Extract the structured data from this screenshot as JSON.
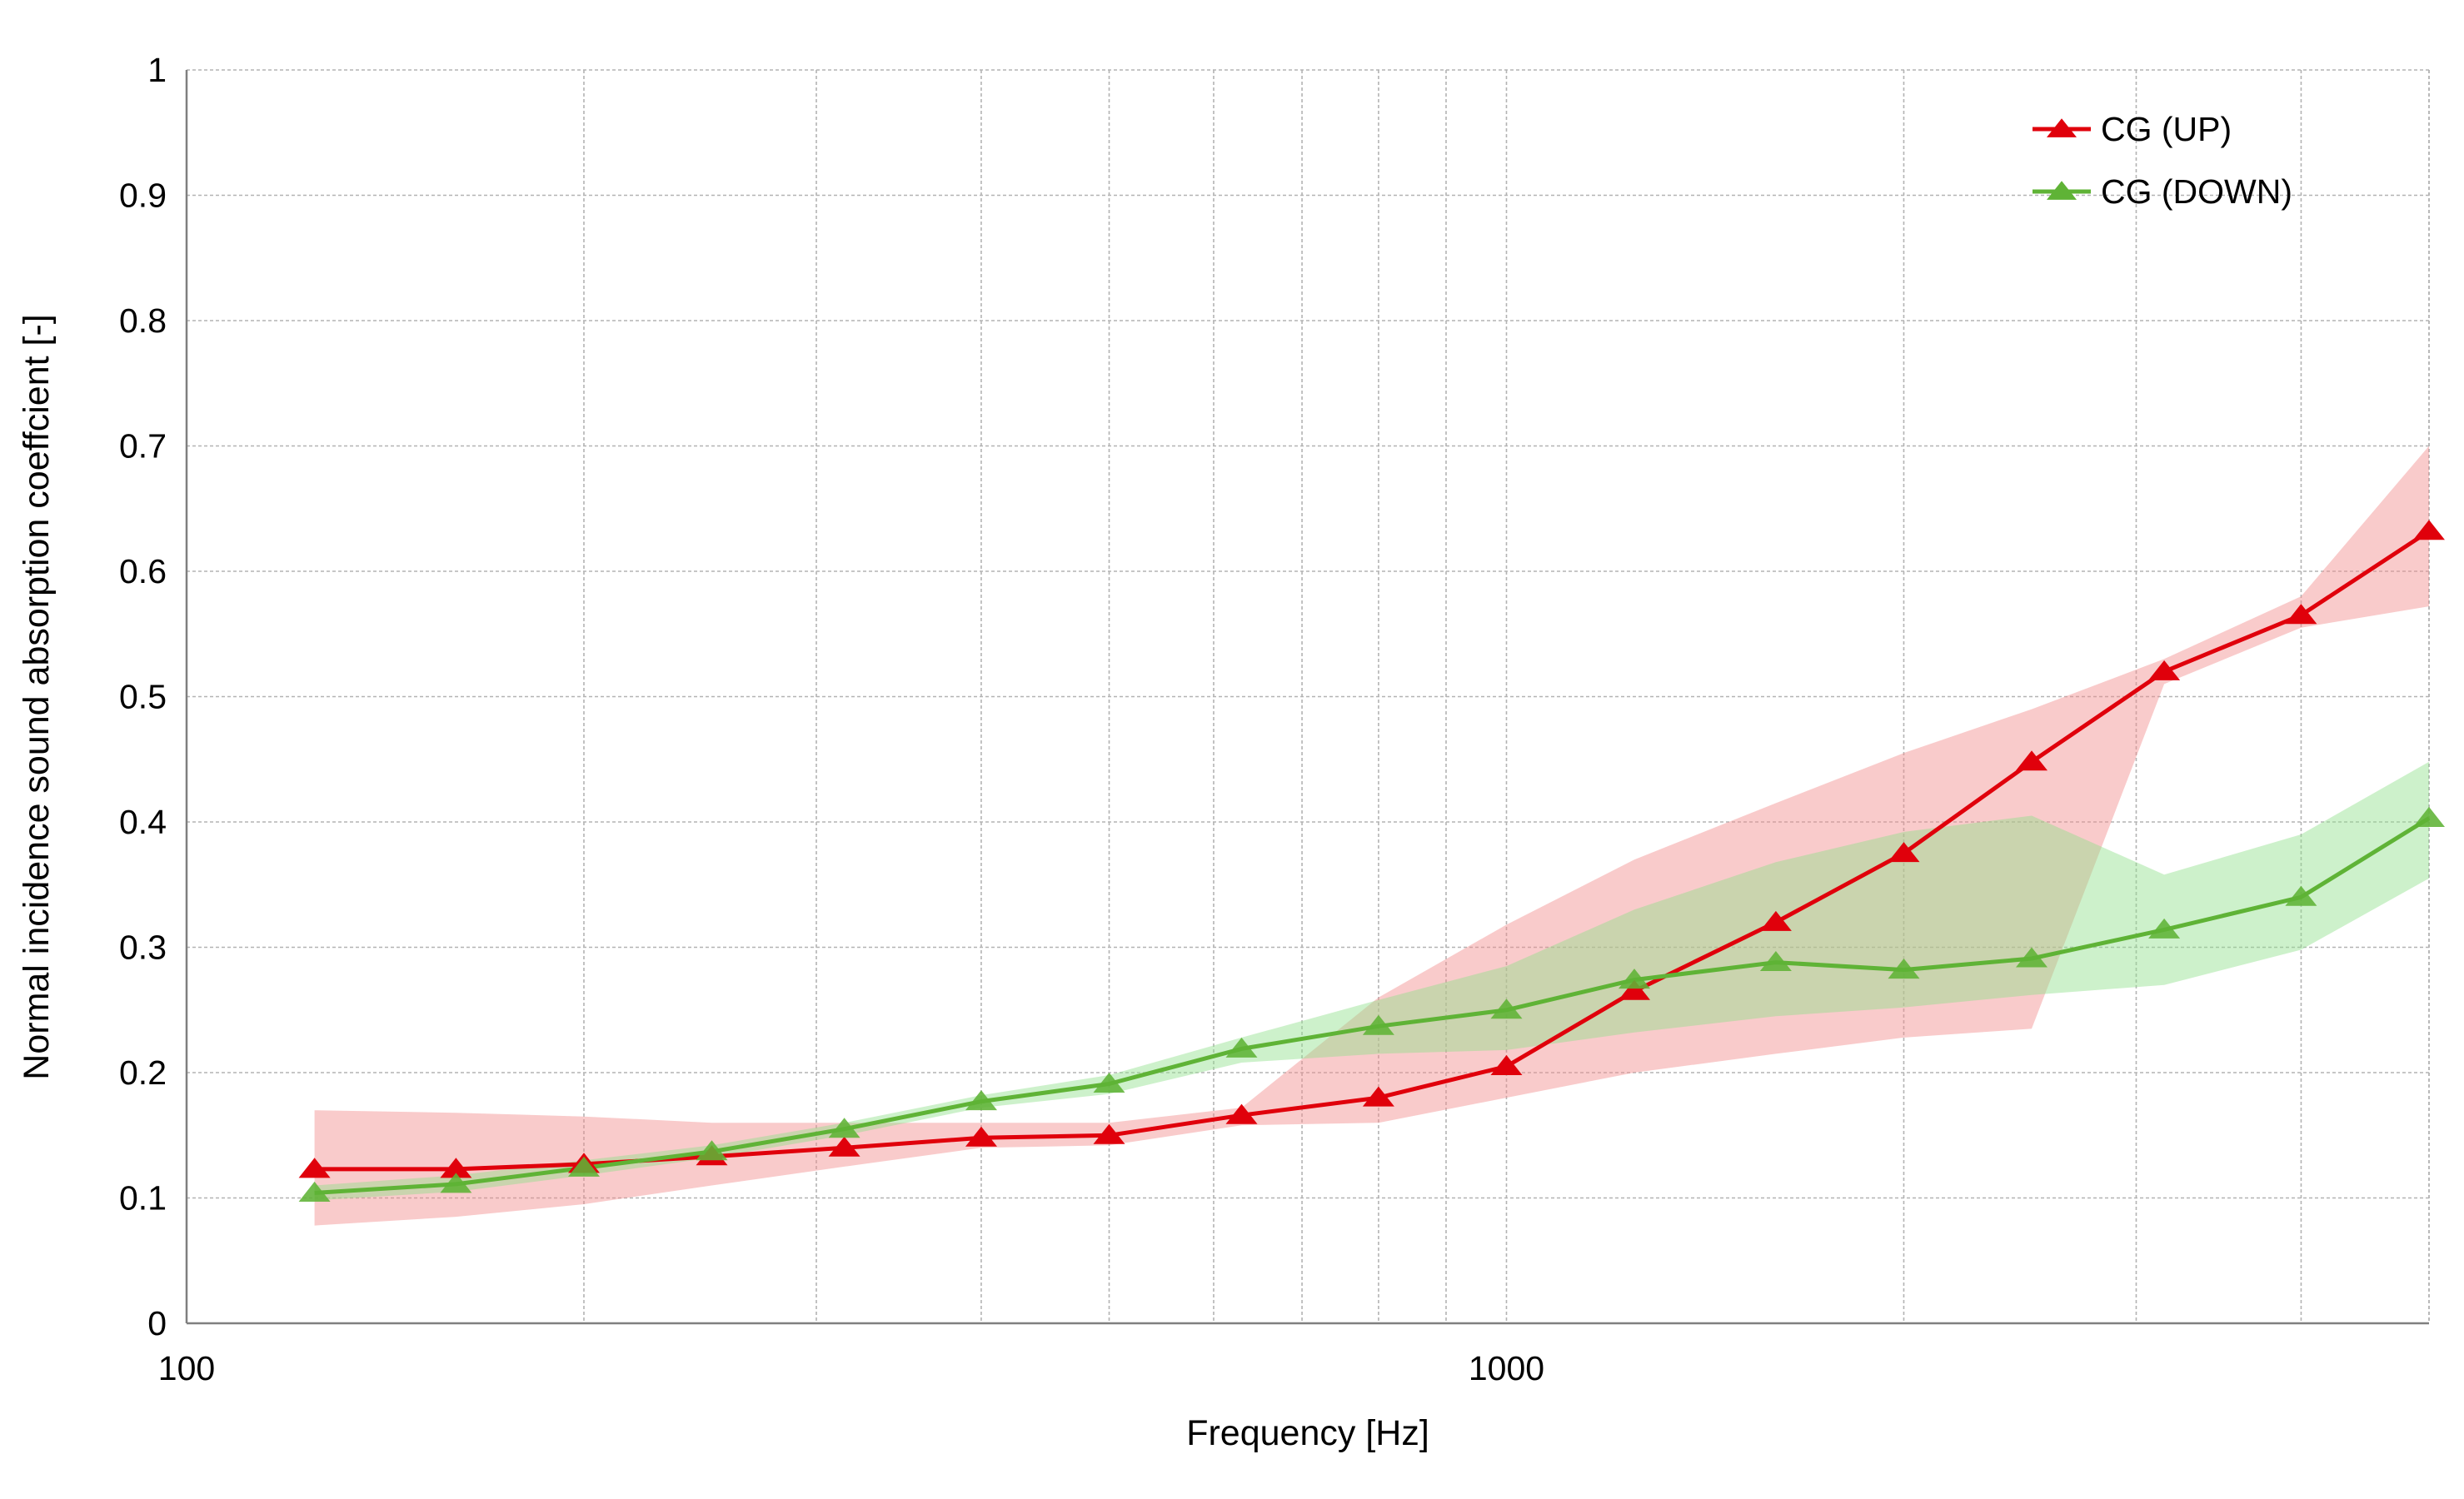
{
  "chart_data": {
    "type": "line",
    "xlabel": "Frequency [Hz]",
    "ylabel": "Normal incidence sound absorption coeffcient [-]",
    "x_scale": "log",
    "xlim": [
      100,
      5000
    ],
    "ylim": [
      0,
      1
    ],
    "x_tick_labels": [
      "100",
      "1000"
    ],
    "x_ticks": [
      100,
      1000
    ],
    "y_ticks": [
      0,
      0.1,
      0.2,
      0.3,
      0.4,
      0.5,
      0.6,
      0.7,
      0.8,
      0.9,
      1
    ],
    "y_tick_labels": [
      "0",
      "0.1",
      "0.2",
      "0.3",
      "0.4",
      "0.5",
      "0.6",
      "0.7",
      "0.8",
      "0.9",
      "1"
    ],
    "grid": true,
    "legend_position": "top-right",
    "x": [
      125,
      160,
      200,
      250,
      315,
      400,
      500,
      630,
      800,
      1000,
      1250,
      1600,
      2000,
      2500,
      3150,
      4000,
      5000
    ],
    "series": [
      {
        "name": "CG (UP)",
        "color": "#e0000b",
        "band_color": "#f28c8c",
        "marker": "triangle",
        "values": [
          0.123,
          0.123,
          0.127,
          0.133,
          0.14,
          0.148,
          0.15,
          0.166,
          0.18,
          0.205,
          0.265,
          0.32,
          0.375,
          0.448,
          0.52,
          0.565,
          0.632
        ],
        "band_upper": [
          0.17,
          0.168,
          0.165,
          0.16,
          0.16,
          0.16,
          0.16,
          0.172,
          0.26,
          0.318,
          0.37,
          0.415,
          0.455,
          0.49,
          0.53,
          0.58,
          0.7
        ],
        "band_lower": [
          0.078,
          0.085,
          0.095,
          0.11,
          0.125,
          0.14,
          0.142,
          0.158,
          0.16,
          0.18,
          0.2,
          0.215,
          0.228,
          0.235,
          0.51,
          0.555,
          0.572
        ]
      },
      {
        "name": "CG (DOWN)",
        "color": "#5fb336",
        "band_color": "#90e08c",
        "marker": "triangle",
        "values": [
          0.104,
          0.111,
          0.124,
          0.137,
          0.155,
          0.177,
          0.191,
          0.219,
          0.237,
          0.25,
          0.274,
          0.288,
          0.282,
          0.291,
          0.314,
          0.34,
          0.403
        ],
        "band_upper": [
          0.11,
          0.118,
          0.13,
          0.142,
          0.16,
          0.182,
          0.198,
          0.228,
          0.258,
          0.285,
          0.33,
          0.368,
          0.392,
          0.405,
          0.358,
          0.39,
          0.448
        ],
        "band_lower": [
          0.098,
          0.105,
          0.118,
          0.132,
          0.15,
          0.172,
          0.183,
          0.208,
          0.215,
          0.218,
          0.232,
          0.245,
          0.252,
          0.262,
          0.27,
          0.298,
          0.355
        ]
      }
    ]
  }
}
